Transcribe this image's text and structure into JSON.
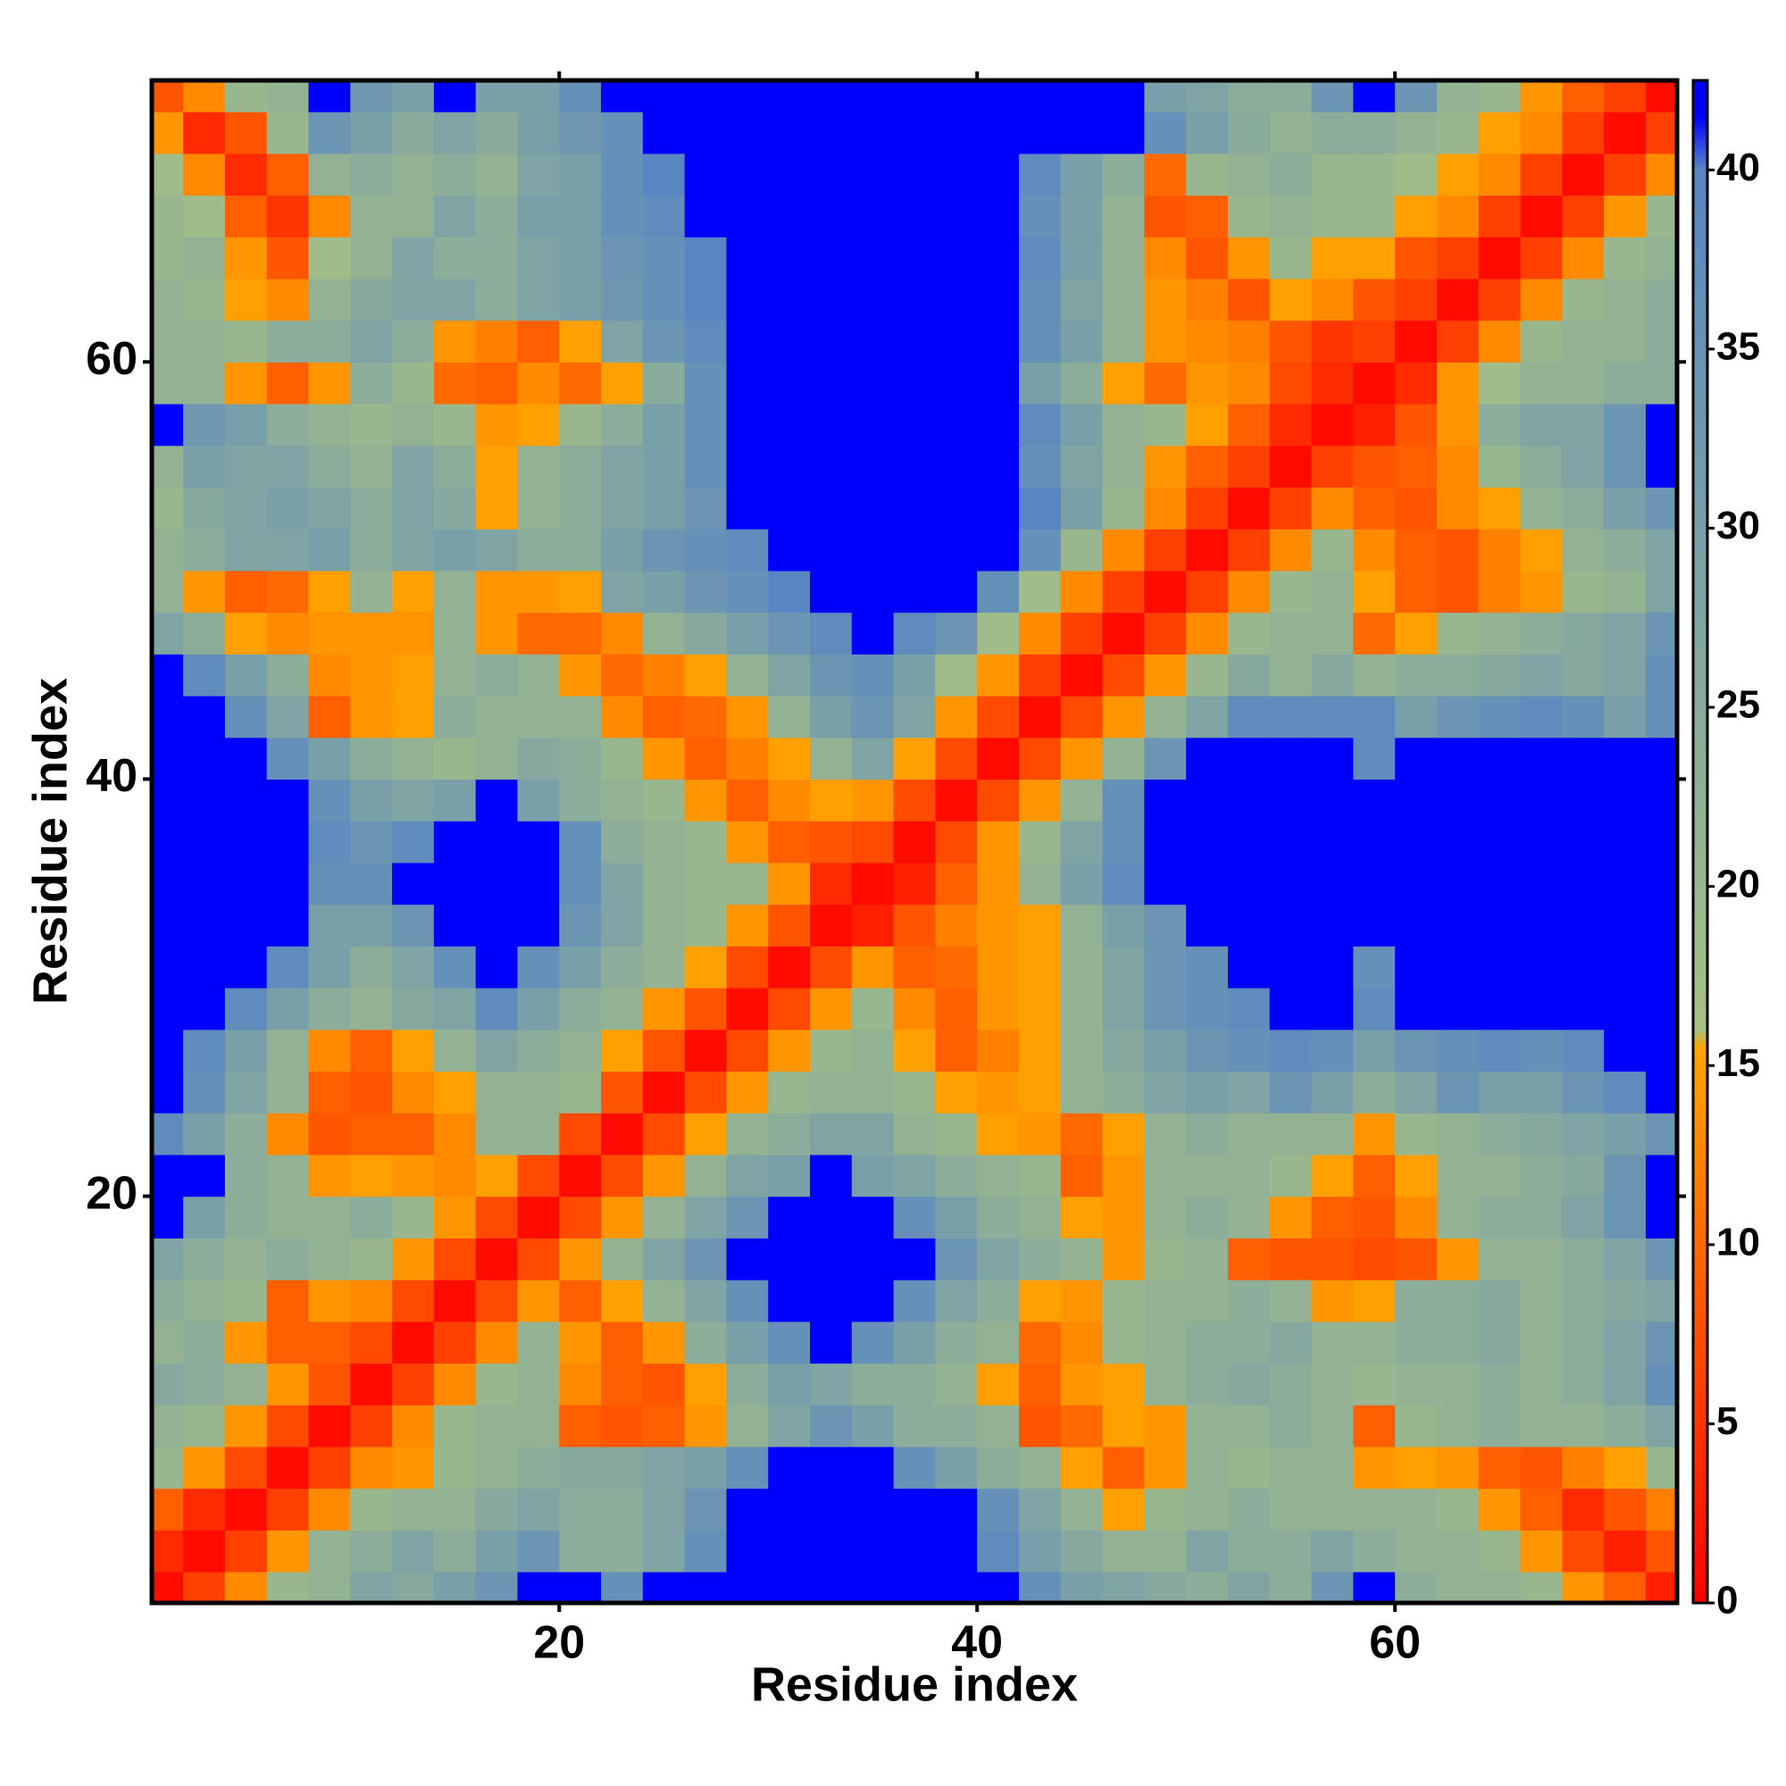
{
  "chart_data": {
    "type": "heatmap",
    "x_label": "Residue index",
    "y_label": "Residue index",
    "x": [
      1,
      3,
      5,
      7,
      9,
      11,
      13,
      15,
      17,
      19,
      21,
      23,
      25,
      27,
      29,
      31,
      33,
      35,
      37,
      39,
      41,
      43,
      45,
      47,
      49,
      51,
      53,
      55,
      57,
      59,
      61,
      63,
      65,
      67,
      69,
      71,
      73
    ],
    "y": [
      1,
      3,
      5,
      7,
      9,
      11,
      13,
      15,
      17,
      19,
      21,
      23,
      25,
      27,
      29,
      31,
      33,
      35,
      37,
      39,
      41,
      43,
      45,
      47,
      49,
      51,
      53,
      55,
      57,
      59,
      61,
      63,
      65,
      67,
      69,
      71,
      73
    ],
    "z": [
      [
        1,
        6,
        13,
        20,
        22,
        28,
        26,
        30,
        34,
        42,
        42,
        36,
        42,
        42,
        42,
        42,
        42,
        42,
        42,
        42,
        42,
        36,
        30,
        28,
        26,
        24,
        28,
        24,
        34,
        42,
        24,
        22,
        22,
        20,
        14,
        9,
        3
      ],
      [
        4,
        1,
        6,
        14,
        22,
        24,
        28,
        24,
        30,
        34,
        24,
        24,
        28,
        36,
        42,
        42,
        42,
        42,
        42,
        42,
        38,
        30,
        26,
        22,
        22,
        28,
        24,
        24,
        28,
        24,
        22,
        22,
        20,
        14,
        7,
        3,
        8
      ],
      [
        9,
        4,
        1,
        6,
        13,
        20,
        22,
        22,
        26,
        28,
        24,
        24,
        28,
        34,
        42,
        42,
        42,
        42,
        42,
        42,
        36,
        28,
        22,
        15,
        20,
        22,
        24,
        22,
        22,
        22,
        22,
        20,
        14,
        9,
        4,
        8,
        12
      ],
      [
        20,
        14,
        7,
        1,
        6,
        13,
        14,
        20,
        22,
        24,
        26,
        26,
        28,
        30,
        36,
        42,
        42,
        42,
        36,
        30,
        24,
        22,
        15,
        9,
        14,
        22,
        20,
        22,
        22,
        14,
        15,
        14,
        9,
        8,
        12,
        15,
        20
      ],
      [
        22,
        20,
        14,
        7,
        1,
        6,
        13,
        20,
        22,
        22,
        9,
        8,
        9,
        14,
        22,
        28,
        34,
        30,
        24,
        24,
        22,
        8,
        10,
        15,
        14,
        22,
        22,
        24,
        22,
        9,
        20,
        22,
        24,
        22,
        22,
        24,
        28
      ],
      [
        26,
        24,
        22,
        14,
        8,
        1,
        6,
        13,
        20,
        22,
        13,
        9,
        8,
        15,
        24,
        30,
        28,
        24,
        24,
        22,
        15,
        9,
        14,
        15,
        22,
        24,
        26,
        24,
        22,
        20,
        22,
        22,
        24,
        22,
        24,
        28,
        36
      ],
      [
        22,
        24,
        14,
        9,
        9,
        7,
        1,
        6,
        13,
        22,
        14,
        9,
        14,
        24,
        30,
        36,
        42,
        36,
        30,
        24,
        22,
        10,
        13,
        20,
        22,
        24,
        24,
        26,
        22,
        22,
        24,
        24,
        26,
        22,
        24,
        28,
        34
      ],
      [
        24,
        22,
        20,
        9,
        14,
        13,
        7,
        1,
        7,
        14,
        9,
        15,
        22,
        28,
        36,
        42,
        42,
        42,
        36,
        28,
        24,
        15,
        14,
        20,
        22,
        22,
        24,
        22,
        14,
        15,
        24,
        24,
        26,
        22,
        24,
        26,
        28
      ],
      [
        28,
        24,
        22,
        24,
        22,
        20,
        14,
        7,
        1,
        7,
        14,
        22,
        28,
        34,
        42,
        42,
        42,
        42,
        42,
        34,
        28,
        24,
        22,
        14,
        20,
        22,
        9,
        8,
        8,
        7,
        8,
        14,
        22,
        22,
        24,
        28,
        34
      ],
      [
        42,
        30,
        24,
        22,
        22,
        24,
        20,
        14,
        7,
        1,
        7,
        14,
        22,
        28,
        34,
        42,
        42,
        42,
        36,
        30,
        24,
        22,
        15,
        14,
        22,
        24,
        22,
        14,
        9,
        8,
        13,
        22,
        24,
        24,
        28,
        34,
        42
      ],
      [
        42,
        42,
        24,
        22,
        14,
        15,
        14,
        13,
        15,
        7,
        1,
        7,
        14,
        22,
        28,
        30,
        42,
        30,
        28,
        24,
        22,
        20,
        9,
        14,
        22,
        22,
        22,
        20,
        15,
        9,
        15,
        22,
        22,
        24,
        26,
        34,
        42
      ],
      [
        38,
        30,
        24,
        13,
        8,
        9,
        9,
        13,
        22,
        22,
        7,
        1,
        7,
        15,
        22,
        24,
        28,
        28,
        22,
        20,
        15,
        14,
        10,
        15,
        22,
        24,
        22,
        22,
        22,
        14,
        20,
        22,
        24,
        26,
        28,
        30,
        34
      ],
      [
        42,
        36,
        28,
        22,
        9,
        8,
        13,
        15,
        22,
        22,
        20,
        8,
        1,
        7,
        14,
        20,
        22,
        22,
        20,
        15,
        14,
        15,
        22,
        24,
        28,
        30,
        28,
        34,
        30,
        24,
        28,
        34,
        30,
        30,
        34,
        38,
        42
      ],
      [
        42,
        38,
        30,
        22,
        13,
        9,
        15,
        22,
        28,
        24,
        22,
        15,
        8,
        1,
        7,
        14,
        20,
        22,
        15,
        9,
        12,
        15,
        22,
        26,
        30,
        34,
        36,
        38,
        36,
        30,
        34,
        36,
        38,
        36,
        38,
        42,
        42
      ],
      [
        42,
        42,
        38,
        30,
        24,
        22,
        26,
        28,
        38,
        30,
        24,
        22,
        14,
        8,
        1,
        7,
        14,
        20,
        13,
        9,
        14,
        15,
        22,
        28,
        34,
        36,
        38,
        42,
        42,
        38,
        42,
        42,
        42,
        42,
        42,
        42,
        42
      ],
      [
        42,
        42,
        42,
        38,
        30,
        24,
        28,
        36,
        42,
        36,
        30,
        24,
        22,
        15,
        7,
        1,
        7,
        14,
        9,
        10,
        14,
        15,
        22,
        28,
        34,
        36,
        42,
        42,
        42,
        36,
        42,
        42,
        42,
        42,
        42,
        42,
        42
      ],
      [
        42,
        42,
        42,
        42,
        30,
        30,
        34,
        42,
        42,
        42,
        34,
        28,
        22,
        20,
        14,
        8,
        1,
        3,
        8,
        12,
        14,
        15,
        22,
        30,
        34,
        42,
        42,
        42,
        42,
        42,
        42,
        42,
        42,
        42,
        42,
        42,
        42
      ],
      [
        42,
        42,
        42,
        42,
        36,
        36,
        42,
        42,
        42,
        42,
        36,
        28,
        22,
        20,
        20,
        14,
        4,
        1,
        3,
        9,
        14,
        22,
        30,
        38,
        42,
        42,
        42,
        42,
        42,
        42,
        42,
        42,
        42,
        42,
        42,
        42,
        42
      ],
      [
        42,
        42,
        42,
        42,
        38,
        34,
        38,
        42,
        42,
        42,
        36,
        24,
        22,
        20,
        14,
        9,
        8,
        7,
        1,
        7,
        14,
        20,
        28,
        36,
        42,
        42,
        42,
        42,
        42,
        42,
        42,
        42,
        42,
        42,
        42,
        42,
        42
      ],
      [
        42,
        42,
        42,
        42,
        36,
        30,
        28,
        30,
        42,
        30,
        24,
        22,
        20,
        14,
        9,
        13,
        15,
        14,
        7,
        1,
        7,
        14,
        22,
        36,
        42,
        42,
        42,
        42,
        42,
        42,
        42,
        42,
        42,
        42,
        42,
        42,
        42
      ],
      [
        42,
        42,
        42,
        36,
        30,
        24,
        22,
        20,
        22,
        26,
        24,
        20,
        14,
        9,
        12,
        15,
        22,
        28,
        15,
        7,
        1,
        7,
        14,
        22,
        34,
        42,
        42,
        42,
        42,
        38,
        42,
        42,
        42,
        42,
        42,
        42,
        42
      ],
      [
        42,
        42,
        36,
        28,
        9,
        14,
        15,
        24,
        22,
        22,
        22,
        13,
        9,
        10,
        14,
        22,
        30,
        34,
        28,
        14,
        7,
        1,
        7,
        14,
        22,
        28,
        38,
        38,
        38,
        38,
        30,
        34,
        36,
        38,
        36,
        30,
        36
      ],
      [
        42,
        38,
        30,
        24,
        13,
        14,
        15,
        22,
        24,
        22,
        14,
        10,
        12,
        15,
        22,
        28,
        34,
        36,
        30,
        18,
        14,
        6,
        1,
        7,
        14,
        20,
        26,
        22,
        26,
        22,
        24,
        24,
        26,
        28,
        26,
        28,
        36
      ],
      [
        28,
        24,
        15,
        13,
        14,
        14,
        14,
        22,
        14,
        10,
        10,
        13,
        22,
        26,
        30,
        34,
        38,
        42,
        38,
        34,
        18,
        13,
        6,
        1,
        6,
        13,
        20,
        22,
        22,
        10,
        15,
        20,
        22,
        24,
        26,
        28,
        34
      ],
      [
        22,
        14,
        9,
        10,
        15,
        22,
        15,
        22,
        14,
        14,
        15,
        28,
        30,
        34,
        36,
        40,
        42,
        42,
        42,
        42,
        36,
        18,
        13,
        6,
        1,
        6,
        13,
        20,
        22,
        15,
        9,
        8,
        12,
        14,
        20,
        22,
        28
      ],
      [
        22,
        24,
        28,
        28,
        30,
        24,
        28,
        30,
        28,
        24,
        24,
        30,
        34,
        36,
        38,
        42,
        42,
        42,
        42,
        42,
        42,
        36,
        20,
        13,
        6,
        1,
        6,
        13,
        20,
        13,
        9,
        8,
        12,
        15,
        22,
        24,
        28
      ],
      [
        20,
        26,
        28,
        30,
        28,
        24,
        28,
        26,
        15,
        22,
        24,
        28,
        30,
        34,
        42,
        42,
        42,
        42,
        42,
        42,
        42,
        40,
        30,
        20,
        13,
        6,
        1,
        6,
        13,
        9,
        8,
        13,
        15,
        22,
        24,
        30,
        34
      ],
      [
        22,
        30,
        28,
        28,
        24,
        22,
        28,
        24,
        15,
        22,
        24,
        28,
        30,
        36,
        42,
        42,
        42,
        42,
        42,
        42,
        42,
        36,
        28,
        22,
        14,
        9,
        6,
        1,
        6,
        8,
        9,
        13,
        20,
        24,
        28,
        34,
        42
      ],
      [
        42,
        33,
        30,
        24,
        22,
        20,
        22,
        20,
        14,
        15,
        20,
        24,
        30,
        36,
        42,
        42,
        42,
        42,
        42,
        42,
        42,
        38,
        30,
        22,
        20,
        15,
        9,
        4,
        1,
        3,
        8,
        14,
        24,
        28,
        28,
        34,
        42
      ],
      [
        22,
        22,
        14,
        9,
        14,
        24,
        20,
        10,
        9,
        13,
        10,
        15,
        25,
        36,
        42,
        42,
        42,
        42,
        42,
        42,
        42,
        30,
        24,
        15,
        10,
        14,
        13,
        7,
        4,
        1,
        4,
        14,
        18,
        22,
        22,
        24,
        24
      ],
      [
        22,
        22,
        20,
        24,
        24,
        28,
        24,
        14,
        12,
        9,
        15,
        28,
        34,
        38,
        42,
        42,
        42,
        42,
        42,
        42,
        42,
        36,
        30,
        22,
        14,
        13,
        12,
        8,
        5,
        6,
        1,
        6,
        13,
        20,
        22,
        22,
        24
      ],
      [
        22,
        20,
        15,
        13,
        22,
        26,
        28,
        28,
        24,
        28,
        30,
        33,
        36,
        40,
        42,
        42,
        42,
        42,
        42,
        42,
        42,
        36,
        28,
        22,
        14,
        12,
        8,
        15,
        13,
        8,
        6,
        1,
        6,
        13,
        20,
        22,
        24
      ],
      [
        20,
        22,
        14,
        8,
        18,
        22,
        28,
        24,
        24,
        28,
        30,
        34,
        36,
        40,
        42,
        42,
        42,
        42,
        42,
        42,
        42,
        38,
        30,
        22,
        13,
        8,
        14,
        20,
        15,
        15,
        8,
        6,
        1,
        6,
        13,
        20,
        22
      ],
      [
        20,
        18,
        9,
        5,
        13,
        22,
        22,
        28,
        24,
        30,
        30,
        36,
        38,
        42,
        42,
        42,
        42,
        42,
        42,
        42,
        42,
        36,
        30,
        22,
        8,
        9,
        20,
        22,
        20,
        20,
        15,
        13,
        6,
        1,
        6,
        14,
        20
      ],
      [
        18,
        13,
        4,
        9,
        22,
        24,
        22,
        24,
        22,
        28,
        30,
        36,
        40,
        42,
        42,
        42,
        42,
        42,
        42,
        42,
        42,
        38,
        30,
        24,
        10,
        20,
        22,
        24,
        20,
        20,
        18,
        15,
        13,
        6,
        1,
        6,
        13
      ],
      [
        14,
        4,
        8,
        20,
        34,
        30,
        25,
        28,
        25,
        30,
        33,
        36,
        42,
        42,
        42,
        42,
        42,
        42,
        42,
        42,
        42,
        42,
        42,
        42,
        36,
        30,
        25,
        22,
        24,
        24,
        22,
        20,
        15,
        13,
        6,
        1,
        6
      ],
      [
        8,
        13,
        20,
        22,
        42,
        33,
        30,
        42,
        30,
        30,
        36,
        42,
        42,
        42,
        42,
        42,
        42,
        42,
        42,
        42,
        42,
        42,
        42,
        42,
        30,
        28,
        24,
        24,
        34,
        42,
        34,
        22,
        20,
        14,
        9,
        6,
        1
      ]
    ],
    "xlim": [
      0.5,
      73.5
    ],
    "ylim": [
      0.5,
      73.5
    ],
    "xticks": [
      20,
      40,
      60
    ],
    "yticks": [
      20,
      40,
      60
    ],
    "colorbar": {
      "lim": [
        0,
        42.5
      ],
      "ticks": [
        0,
        5,
        10,
        15,
        20,
        25,
        30,
        35,
        40
      ],
      "colorscale": [
        [
          0,
          "#ff0000"
        ],
        [
          10,
          "#ff6a00"
        ],
        [
          15.5,
          "#ffa500"
        ],
        [
          16,
          "#a6c184"
        ],
        [
          40,
          "#5886c2"
        ],
        [
          41.5,
          "#0000ff"
        ],
        [
          42.5,
          "#0000ff"
        ]
      ]
    }
  }
}
